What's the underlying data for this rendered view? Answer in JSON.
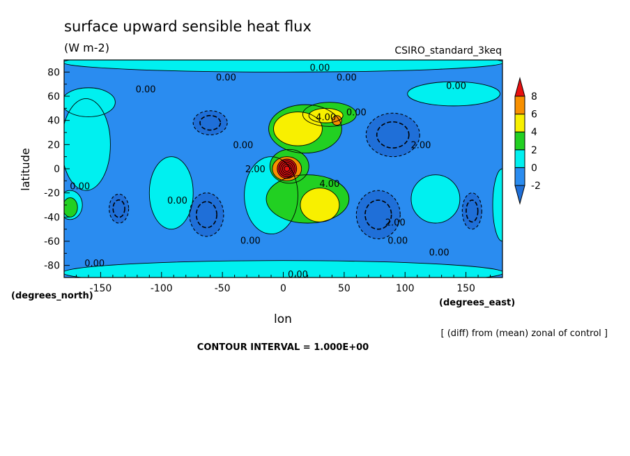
{
  "chart_data": {
    "type": "heatmap",
    "title": "surface upward sensible heat flux",
    "subtitle": "(W m-2)",
    "dataset": "CSIRO_standard_3keq",
    "xlabel": "lon",
    "ylabel": "latitude",
    "x_units": "(degrees_east)",
    "y_units": "(degrees_north)",
    "xlim": [
      -180,
      180
    ],
    "ylim": [
      -90,
      90
    ],
    "x_ticks": [
      -150,
      -100,
      -50,
      0,
      50,
      100,
      150
    ],
    "y_ticks": [
      80,
      60,
      40,
      20,
      0,
      -20,
      -40,
      -60,
      -80
    ],
    "colorbar": {
      "levels": [
        -2,
        0,
        2,
        4,
        6,
        8
      ],
      "bands": [
        {
          "range": "< -2",
          "color": "#1f6fd8"
        },
        {
          "range": "-2 to 0",
          "color": "#2a8cf0"
        },
        {
          "range": "0 to 2",
          "color": "#00f0f0"
        },
        {
          "range": "2 to 4",
          "color": "#22d022"
        },
        {
          "range": "4 to 6",
          "color": "#f8f000"
        },
        {
          "range": "6 to 8",
          "color": "#f89000"
        },
        {
          "range": "> 8",
          "color": "#e81010"
        }
      ]
    },
    "contour_labels": [
      {
        "text": "0.00",
        "lon": 30,
        "lat": 84
      },
      {
        "text": "0.00",
        "lon": -47,
        "lat": 76
      },
      {
        "text": "0.00",
        "lon": 52,
        "lat": 76
      },
      {
        "text": "0.00",
        "lon": -113,
        "lat": 66
      },
      {
        "text": "0.00",
        "lon": 142,
        "lat": 69
      },
      {
        "text": "4.00",
        "lon": 35,
        "lat": 43
      },
      {
        "text": "0.00",
        "lon": 60,
        "lat": 47
      },
      {
        "text": "2.00",
        "lon": 113,
        "lat": 20
      },
      {
        "text": "0.00",
        "lon": -33,
        "lat": 20
      },
      {
        "text": "2.00",
        "lon": -23,
        "lat": 0
      },
      {
        "text": "4.00",
        "lon": 38,
        "lat": -12
      },
      {
        "text": "0.00",
        "lon": -167,
        "lat": -14
      },
      {
        "text": "0.00",
        "lon": -87,
        "lat": -26
      },
      {
        "text": "2.00",
        "lon": 92,
        "lat": -44
      },
      {
        "text": "0.00",
        "lon": -27,
        "lat": -59
      },
      {
        "text": "0.00",
        "lon": 94,
        "lat": -59
      },
      {
        "text": "0.00",
        "lon": 128,
        "lat": -69
      },
      {
        "text": "0.00",
        "lon": -155,
        "lat": -78
      },
      {
        "text": "0.00",
        "lon": 12,
        "lat": -87
      }
    ],
    "regions": [
      {
        "lon": 0,
        "lat": 88,
        "rx": 181,
        "ry": 8,
        "level": 0,
        "color": "#00f0f0"
      },
      {
        "lon": 0,
        "lat": -86,
        "rx": 181,
        "ry": 10,
        "level": 0,
        "color": "#00f0f0"
      },
      {
        "lon": 140,
        "lat": 62,
        "rx": 38,
        "ry": 10,
        "level": 0,
        "color": "#00f0f0"
      },
      {
        "lon": -160,
        "lat": 55,
        "rx": 22,
        "ry": 12,
        "level": 0,
        "color": "#00f0f0"
      },
      {
        "lon": -162,
        "lat": 20,
        "rx": 20,
        "ry": 38,
        "level": 0,
        "color": "#00f0f0"
      },
      {
        "lon": -175,
        "lat": -30,
        "rx": 10,
        "ry": 12,
        "level": 0,
        "color": "#00f0f0"
      },
      {
        "lon": -175,
        "lat": -32,
        "rx": 6,
        "ry": 8,
        "level": 2,
        "color": "#22d022"
      },
      {
        "lon": -92,
        "lat": -20,
        "rx": 18,
        "ry": 30,
        "level": 0,
        "color": "#00f0f0"
      },
      {
        "lon": -10,
        "lat": -22,
        "rx": 22,
        "ry": 32,
        "level": 0,
        "color": "#00f0f0"
      },
      {
        "lon": 125,
        "lat": -25,
        "rx": 20,
        "ry": 20,
        "level": 0,
        "color": "#00f0f0"
      },
      {
        "lon": 180,
        "lat": -30,
        "rx": 8,
        "ry": 30,
        "level": 0,
        "color": "#00f0f0"
      },
      {
        "lon": -60,
        "lat": 38,
        "rx": 14,
        "ry": 10,
        "level": -2,
        "color": "#1f6fd8"
      },
      {
        "lon": 90,
        "lat": 28,
        "rx": 22,
        "ry": 18,
        "level": -2,
        "color": "#1f6fd8"
      },
      {
        "lon": -63,
        "lat": -38,
        "rx": 14,
        "ry": 18,
        "level": -2,
        "color": "#1f6fd8"
      },
      {
        "lon": -135,
        "lat": -33,
        "rx": 8,
        "ry": 12,
        "level": -2,
        "color": "#1f6fd8"
      },
      {
        "lon": 78,
        "lat": -38,
        "rx": 18,
        "ry": 20,
        "level": -2,
        "color": "#1f6fd8"
      },
      {
        "lon": 155,
        "lat": -35,
        "rx": 8,
        "ry": 15,
        "level": -2,
        "color": "#1f6fd8"
      },
      {
        "lon": 18,
        "lat": 33,
        "rx": 30,
        "ry": 20,
        "level": 2,
        "color": "#22d022"
      },
      {
        "lon": 38,
        "lat": 45,
        "rx": 22,
        "ry": 10,
        "level": 2,
        "color": "#22d022"
      },
      {
        "lon": 20,
        "lat": -25,
        "rx": 34,
        "ry": 20,
        "level": 2,
        "color": "#22d022"
      },
      {
        "lon": 5,
        "lat": 2,
        "rx": 16,
        "ry": 14,
        "level": 2,
        "color": "#22d022"
      },
      {
        "lon": 12,
        "lat": 33,
        "rx": 20,
        "ry": 14,
        "level": 4,
        "color": "#f8f000"
      },
      {
        "lon": 35,
        "lat": 44,
        "rx": 14,
        "ry": 6,
        "level": 4,
        "color": "#f8f000"
      },
      {
        "lon": 30,
        "lat": -30,
        "rx": 16,
        "ry": 14,
        "level": 4,
        "color": "#f8f000"
      },
      {
        "lon": 44,
        "lat": 40,
        "rx": 4,
        "ry": 4,
        "level": 6,
        "color": "#f89000"
      },
      {
        "lon": 3,
        "lat": 0,
        "rx": 12,
        "ry": 10,
        "level": 6,
        "color": "#f89000"
      },
      {
        "lon": 3,
        "lat": 0,
        "rx": 8,
        "ry": 8,
        "level": 8,
        "color": "#e81010"
      }
    ]
  },
  "footer": {
    "contour_interval": "CONTOUR INTERVAL = 1.000E+00",
    "note": "[ (diff) from (mean) zonal of control ]"
  }
}
